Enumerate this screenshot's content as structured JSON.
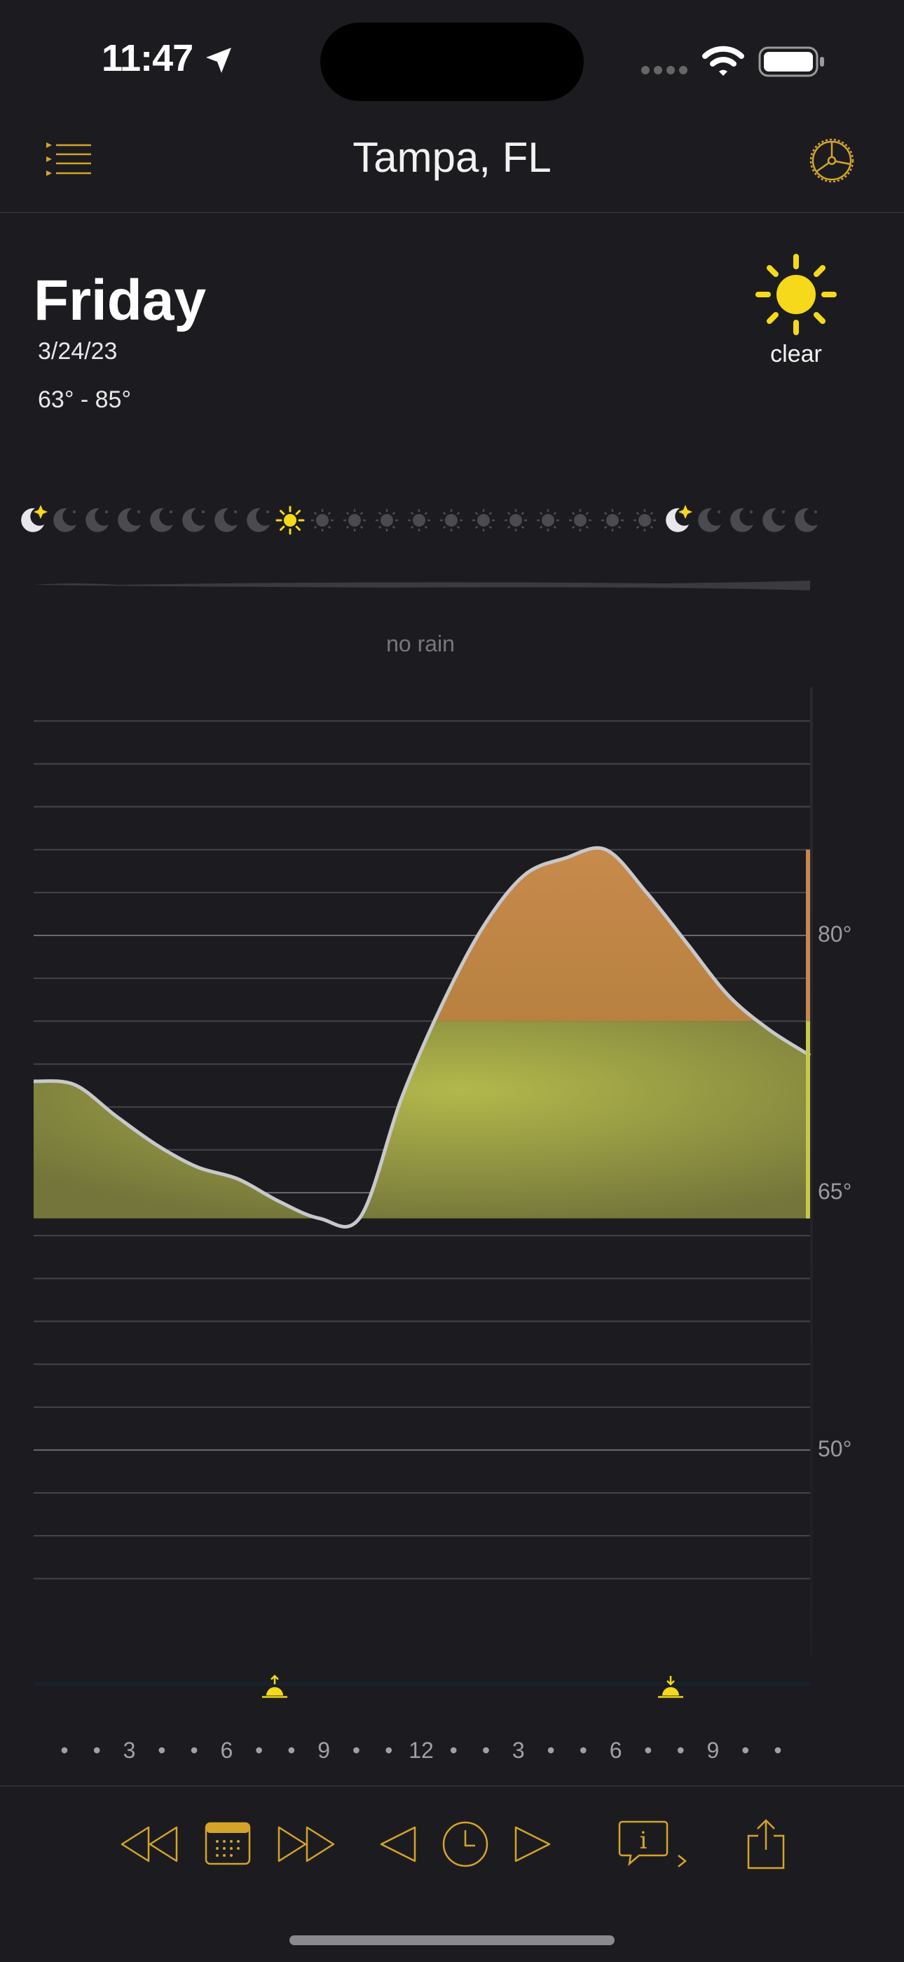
{
  "status_bar": {
    "time": "11:47"
  },
  "header": {
    "title": "Tampa, FL"
  },
  "day": {
    "name": "Friday",
    "date": "3/24/23",
    "temp_range": "63° - 85°",
    "condition": "clear"
  },
  "precip": {
    "label": "no rain"
  },
  "hourly_icons": [
    "moon-stars",
    "moon",
    "moon",
    "moon",
    "moon",
    "moon",
    "moon",
    "moon",
    "sun",
    "sun-dim",
    "sun-dim",
    "sun-dim",
    "sun-dim",
    "sun-dim",
    "sun-dim",
    "sun-dim",
    "sun-dim",
    "sun-dim",
    "sun-dim",
    "sun-dim",
    "moon-stars",
    "moon",
    "moon",
    "moon",
    "moon"
  ],
  "chart_data": {
    "type": "area",
    "y_ticks": [
      {
        "value": 80,
        "label": "80°"
      },
      {
        "value": 65,
        "label": "65°"
      },
      {
        "value": 50,
        "label": "50°"
      }
    ],
    "ylim": [
      41,
      93
    ],
    "x_labels": [
      "•",
      "•",
      "3",
      "•",
      "•",
      "6",
      "•",
      "•",
      "9",
      "•",
      "•",
      "12",
      "•",
      "•",
      "3",
      "•",
      "•",
      "6",
      "•",
      "•",
      "9",
      "•",
      "•"
    ],
    "series": [
      {
        "values": [
          71.5,
          71.3,
          69.5,
          67.8,
          66.5,
          65.8,
          64.5,
          63.5,
          63.6,
          70.5,
          76.0,
          80.5,
          83.5,
          84.5,
          85.0,
          82.5,
          79.5,
          76.5,
          74.5,
          73.0
        ]
      }
    ],
    "warm_threshold": 75,
    "sunrise_hour": 7.5,
    "sunset_hour": 19.7
  },
  "colors": {
    "accent": "#d4a42a",
    "sun": "#f5d91a",
    "warm_fill": "#d08d52",
    "mild_fill": "#a9ad44"
  },
  "toolbar": [
    "rewind-icon",
    "calendar-icon",
    "fast-forward-icon",
    "prev-icon",
    "clock-icon",
    "next-icon",
    "info-icon",
    "share-icon"
  ]
}
